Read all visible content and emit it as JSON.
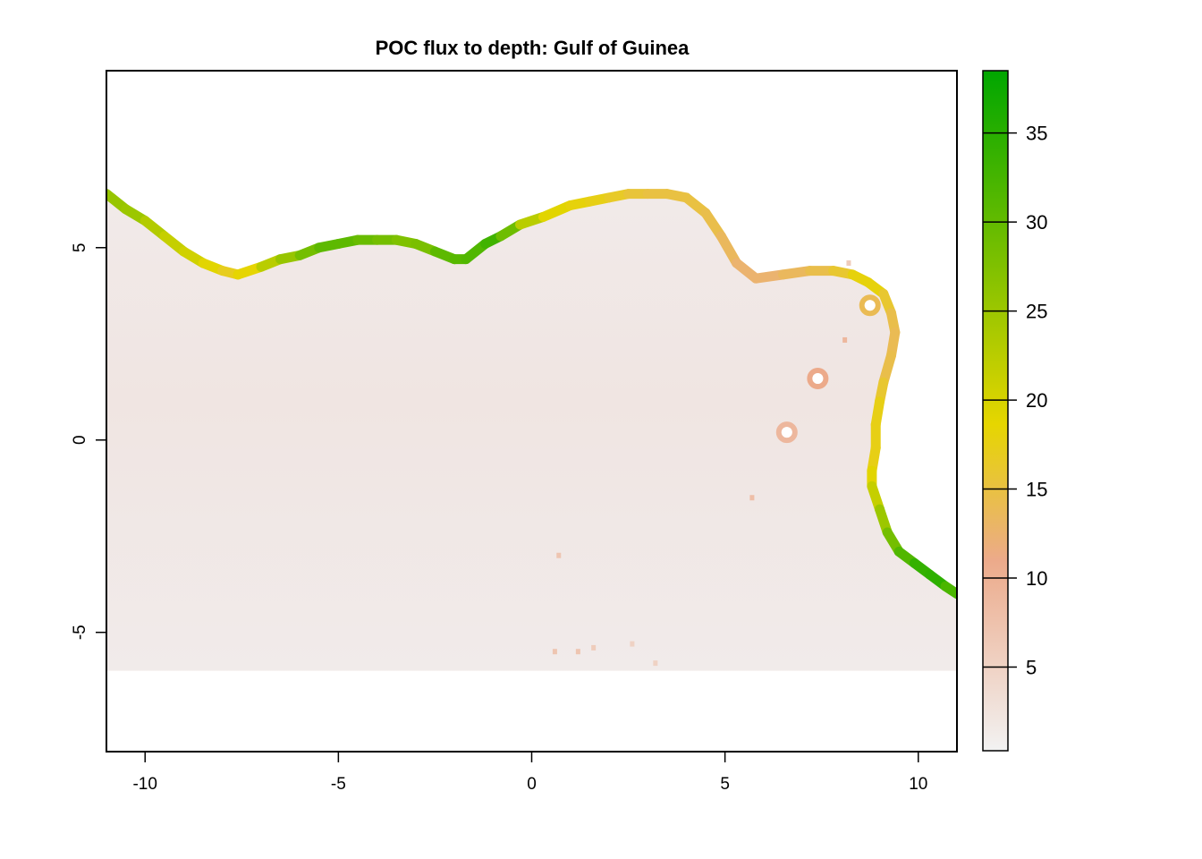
{
  "chart_data": {
    "type": "heatmap",
    "title": "POC flux to depth: Gulf of Guinea",
    "xlabel": "",
    "ylabel": "",
    "xlim": [
      -11,
      11
    ],
    "ylim": [
      -8.1,
      9.6
    ],
    "x_ticks": [
      -10,
      -5,
      0,
      5,
      10
    ],
    "y_ticks": [
      -5,
      0,
      5
    ],
    "data_extent": {
      "x": [
        -11,
        11
      ],
      "y": [
        -6,
        9.6
      ]
    },
    "legend": {
      "position": "right",
      "min": 0.3,
      "max": 38.5,
      "ticks": [
        5,
        10,
        15,
        20,
        25,
        30,
        35
      ],
      "colors": {
        "low": "#f2f2f2",
        "mid_low": "#ecaa8a",
        "mid": "#e6d600",
        "high": "#00a600"
      }
    },
    "background_value": 2.5,
    "coastline": [
      {
        "x": -11.0,
        "y": 6.4,
        "v": 25
      },
      {
        "x": -10.5,
        "y": 6.0,
        "v": 26
      },
      {
        "x": -10.0,
        "y": 5.7,
        "v": 24
      },
      {
        "x": -9.5,
        "y": 5.3,
        "v": 22
      },
      {
        "x": -9.0,
        "y": 4.9,
        "v": 21
      },
      {
        "x": -8.5,
        "y": 4.6,
        "v": 20
      },
      {
        "x": -8.0,
        "y": 4.4,
        "v": 18
      },
      {
        "x": -7.6,
        "y": 4.3,
        "v": 16
      },
      {
        "x": -7.0,
        "y": 4.5,
        "v": 21
      },
      {
        "x": -6.5,
        "y": 4.7,
        "v": 24
      },
      {
        "x": -6.0,
        "y": 4.8,
        "v": 27
      },
      {
        "x": -5.5,
        "y": 5.0,
        "v": 30
      },
      {
        "x": -5.0,
        "y": 5.1,
        "v": 31
      },
      {
        "x": -4.5,
        "y": 5.2,
        "v": 30
      },
      {
        "x": -4.0,
        "y": 5.2,
        "v": 29
      },
      {
        "x": -3.5,
        "y": 5.2,
        "v": 28
      },
      {
        "x": -3.0,
        "y": 5.1,
        "v": 27
      },
      {
        "x": -2.5,
        "y": 4.9,
        "v": 29
      },
      {
        "x": -2.0,
        "y": 4.7,
        "v": 32
      },
      {
        "x": -1.7,
        "y": 4.7,
        "v": 30
      },
      {
        "x": -1.2,
        "y": 5.1,
        "v": 33
      },
      {
        "x": -0.8,
        "y": 5.3,
        "v": 33
      },
      {
        "x": -0.3,
        "y": 5.6,
        "v": 25
      },
      {
        "x": 0.3,
        "y": 5.8,
        "v": 20
      },
      {
        "x": 1.0,
        "y": 6.1,
        "v": 18
      },
      {
        "x": 1.5,
        "y": 6.2,
        "v": 18
      },
      {
        "x": 2.0,
        "y": 6.3,
        "v": 17
      },
      {
        "x": 2.5,
        "y": 6.4,
        "v": 16
      },
      {
        "x": 3.0,
        "y": 6.4,
        "v": 15
      },
      {
        "x": 3.5,
        "y": 6.4,
        "v": 15
      },
      {
        "x": 4.0,
        "y": 6.3,
        "v": 15
      },
      {
        "x": 4.5,
        "y": 5.9,
        "v": 15
      },
      {
        "x": 4.9,
        "y": 5.3,
        "v": 14
      },
      {
        "x": 5.3,
        "y": 4.6,
        "v": 13
      },
      {
        "x": 5.8,
        "y": 4.2,
        "v": 12
      },
      {
        "x": 6.5,
        "y": 4.3,
        "v": 13
      },
      {
        "x": 7.2,
        "y": 4.4,
        "v": 14
      },
      {
        "x": 7.8,
        "y": 4.4,
        "v": 15
      },
      {
        "x": 8.3,
        "y": 4.3,
        "v": 17
      },
      {
        "x": 8.7,
        "y": 4.1,
        "v": 19
      },
      {
        "x": 9.1,
        "y": 3.8,
        "v": 17
      },
      {
        "x": 9.3,
        "y": 3.3,
        "v": 15
      },
      {
        "x": 9.4,
        "y": 2.8,
        "v": 14
      },
      {
        "x": 9.3,
        "y": 2.2,
        "v": 14
      },
      {
        "x": 9.1,
        "y": 1.5,
        "v": 15
      },
      {
        "x": 9.0,
        "y": 1.0,
        "v": 17
      },
      {
        "x": 8.9,
        "y": 0.4,
        "v": 18
      },
      {
        "x": 8.9,
        "y": -0.2,
        "v": 17
      },
      {
        "x": 8.8,
        "y": -0.8,
        "v": 18
      },
      {
        "x": 8.8,
        "y": -1.2,
        "v": 20
      },
      {
        "x": 9.0,
        "y": -1.8,
        "v": 23
      },
      {
        "x": 9.2,
        "y": -2.4,
        "v": 27
      },
      {
        "x": 9.5,
        "y": -2.9,
        "v": 30
      },
      {
        "x": 9.9,
        "y": -3.2,
        "v": 33
      },
      {
        "x": 10.3,
        "y": -3.5,
        "v": 35
      },
      {
        "x": 10.7,
        "y": -3.8,
        "v": 34
      },
      {
        "x": 11.0,
        "y": -4.0,
        "v": 30
      }
    ],
    "islands": [
      {
        "x": 8.75,
        "y": 3.5,
        "v": 14
      },
      {
        "x": 7.4,
        "y": 1.6,
        "v": 11
      },
      {
        "x": 6.6,
        "y": 0.2,
        "v": 9
      }
    ],
    "specks": [
      {
        "x": 5.7,
        "y": -1.5,
        "v": 8
      },
      {
        "x": 0.7,
        "y": -3.0,
        "v": 7
      },
      {
        "x": 0.6,
        "y": -5.5,
        "v": 7
      },
      {
        "x": 1.2,
        "y": -5.5,
        "v": 7
      },
      {
        "x": 1.6,
        "y": -5.4,
        "v": 6
      },
      {
        "x": 2.6,
        "y": -5.3,
        "v": 5
      },
      {
        "x": 3.2,
        "y": -5.8,
        "v": 5
      },
      {
        "x": 8.1,
        "y": 2.6,
        "v": 9
      },
      {
        "x": 8.2,
        "y": 4.6,
        "v": 6
      }
    ]
  }
}
